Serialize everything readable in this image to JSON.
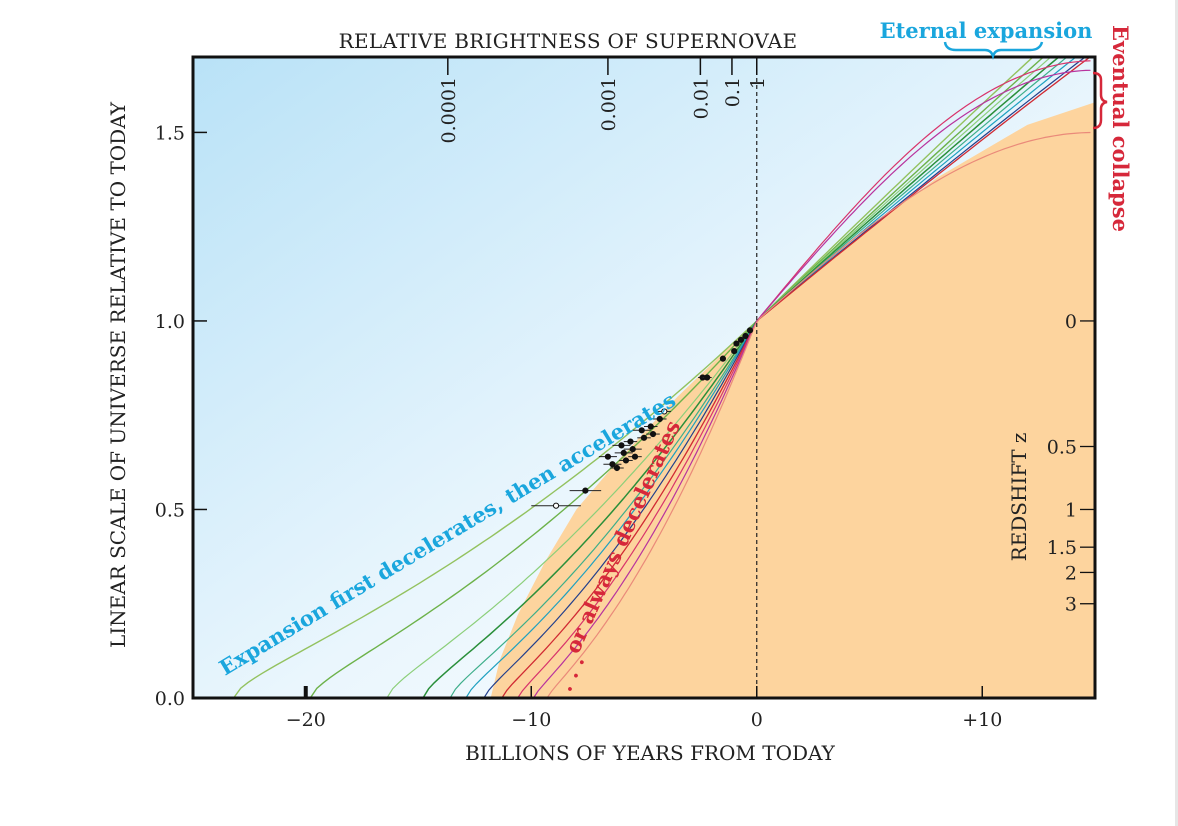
{
  "chart_data": {
    "type": "line",
    "title": "RELATIVE BRIGHTNESS OF SUPERNOVAE",
    "xlabel": "BILLIONS OF YEARS FROM TODAY",
    "ylabel": "LINEAR SCALE OF UNIVERSE RELATIVE TO TODAY",
    "right_axis_label": "REDSHIFT z",
    "xlim": [
      -25,
      15
    ],
    "ylim": [
      0,
      1.7
    ],
    "x_ticks": [
      {
        "value": -20,
        "label": "−20"
      },
      {
        "value": -10,
        "label": "−10"
      },
      {
        "value": 0,
        "label": "0"
      },
      {
        "value": 10,
        "label": "+10"
      }
    ],
    "y_ticks": [
      {
        "value": 0,
        "label": "0.0"
      },
      {
        "value": 0.5,
        "label": "0.5"
      },
      {
        "value": 1.0,
        "label": "1.0"
      },
      {
        "value": 1.5,
        "label": "1.5"
      }
    ],
    "brightness_ticks": [
      {
        "x": -13.7,
        "label": "0.0001"
      },
      {
        "x": -6.6,
        "label": "0.001"
      },
      {
        "x": -2.5,
        "label": "0.01"
      },
      {
        "x": -1.1,
        "label": "0.1"
      },
      {
        "x": 0,
        "label": "1"
      }
    ],
    "redshift_ticks": [
      {
        "y": 1.0,
        "label": "0"
      },
      {
        "y": 0.667,
        "label": "0.5"
      },
      {
        "y": 0.5,
        "label": "1"
      },
      {
        "y": 0.4,
        "label": "1.5"
      },
      {
        "y": 0.333,
        "label": "2"
      },
      {
        "y": 0.25,
        "label": "3"
      }
    ],
    "annotations": {
      "eternal": "Eternal expansion",
      "collapse": "Eventual collapse",
      "accelerates": "Expansion first decelerates, then accelerates",
      "decelerates": "or always decelerates",
      "dots": ". . ."
    },
    "colors": {
      "background_blue": "#c6e8f8",
      "decelerating_region": "#fdd49e",
      "cyan": "#1aa6dd",
      "red": "#d6283a"
    },
    "series": [
      {
        "t0": -23.2,
        "a_mid": 0.35,
        "a_end": 1.85,
        "color": "#93c25f",
        "width": 1.4
      },
      {
        "t0": -19.8,
        "a_mid": 0.29,
        "a_end": 1.82,
        "color": "#6db24a",
        "width": 1.4
      },
      {
        "t0": -16.4,
        "a_mid": 0.25,
        "a_end": 1.8,
        "color": "#8ccf7a",
        "width": 1.2
      },
      {
        "t0": -14.8,
        "a_mid": 0.16,
        "a_end": 1.78,
        "color": "#2a8f3a",
        "width": 1.5
      },
      {
        "t0": -13.6,
        "a_mid": 0.13,
        "a_end": 1.76,
        "color": "#3dae8a",
        "width": 1.2
      },
      {
        "t0": -12.9,
        "a_mid": 0.11,
        "a_end": 1.74,
        "color": "#1ea0c0",
        "width": 1.2
      },
      {
        "t0": -12.1,
        "a_mid": 0.08,
        "a_end": 1.72,
        "color": "#223f8c",
        "width": 1.2
      },
      {
        "t0": -11.3,
        "a_mid": 0.05,
        "a_end": 1.71,
        "color": "#d02a33",
        "width": 1.3
      },
      {
        "t0": -10.6,
        "a_mid": 0.04,
        "a_end": 1.69,
        "color": "#d8346b",
        "width": 1.2
      },
      {
        "t0": -9.9,
        "a_mid": 0.02,
        "a_end": 1.665,
        "color": "#b8339e",
        "width": 1.2
      },
      {
        "t0": -9.3,
        "a_mid": 0.01,
        "a_end": 1.5,
        "color": "#ea8a7a",
        "width": 1.2
      }
    ],
    "supernova_points": [
      {
        "x": -8.9,
        "y": 0.51,
        "xerr": 1.1,
        "open": true
      },
      {
        "x": -7.6,
        "y": 0.55,
        "xerr": 0.7,
        "open": false
      },
      {
        "x": -6.6,
        "y": 0.64,
        "xerr": 0.4,
        "open": false
      },
      {
        "x": -6.4,
        "y": 0.62,
        "xerr": 0.4,
        "open": false
      },
      {
        "x": -6.2,
        "y": 0.61,
        "xerr": 0.3,
        "open": false
      },
      {
        "x": -6.0,
        "y": 0.67,
        "xerr": 0.4,
        "open": false
      },
      {
        "x": -5.9,
        "y": 0.65,
        "xerr": 0.4,
        "open": false
      },
      {
        "x": -5.8,
        "y": 0.63,
        "xerr": 0.3,
        "open": false
      },
      {
        "x": -5.6,
        "y": 0.68,
        "xerr": 0.3,
        "open": false
      },
      {
        "x": -5.5,
        "y": 0.66,
        "xerr": 0.4,
        "open": false
      },
      {
        "x": -5.4,
        "y": 0.64,
        "xerr": 0.3,
        "open": false
      },
      {
        "x": -5.1,
        "y": 0.71,
        "xerr": 0.4,
        "open": false
      },
      {
        "x": -5.0,
        "y": 0.69,
        "xerr": 0.3,
        "open": false
      },
      {
        "x": -4.7,
        "y": 0.72,
        "xerr": 0.3,
        "open": false
      },
      {
        "x": -4.6,
        "y": 0.7,
        "xerr": 0.3,
        "open": false
      },
      {
        "x": -4.3,
        "y": 0.74,
        "xerr": 0.3,
        "open": false
      },
      {
        "x": -4.1,
        "y": 0.76,
        "xerr": 0.3,
        "open": true
      },
      {
        "x": -2.4,
        "y": 0.85,
        "xerr": 0.2,
        "open": false
      },
      {
        "x": -2.2,
        "y": 0.85,
        "xerr": 0.2,
        "open": false
      },
      {
        "x": -1.5,
        "y": 0.9,
        "xerr": 0.1,
        "open": false
      },
      {
        "x": -1.0,
        "y": 0.92,
        "xerr": 0.1,
        "open": false
      },
      {
        "x": -0.9,
        "y": 0.94,
        "xerr": 0.1,
        "open": false
      },
      {
        "x": -0.7,
        "y": 0.95,
        "xerr": 0.1,
        "open": false
      },
      {
        "x": -0.5,
        "y": 0.96,
        "xerr": 0.1,
        "open": false
      },
      {
        "x": -0.3,
        "y": 0.975,
        "xerr": 0.1,
        "open": false
      }
    ],
    "grid": false,
    "legend": "none"
  }
}
